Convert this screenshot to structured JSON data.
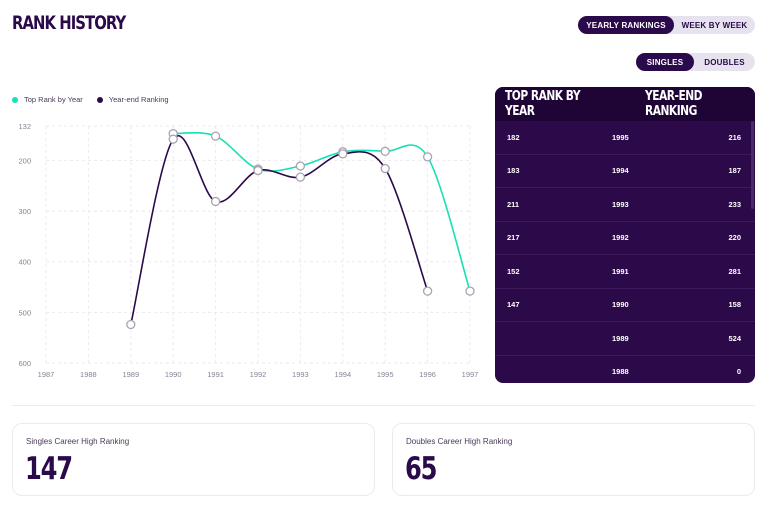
{
  "page": {
    "title": "RANK HISTORY"
  },
  "view_toggle": {
    "options": [
      "YEARLY RANKINGS",
      "WEEK BY WEEK"
    ],
    "active": 0
  },
  "type_toggle": {
    "options": [
      "SINGLES",
      "DOUBLES"
    ],
    "active": 0
  },
  "legend": [
    {
      "label": "Top Rank by Year",
      "color": "#16e0b4"
    },
    {
      "label": "Year-end Ranking",
      "color": "#2a0a4a"
    }
  ],
  "chart_data": {
    "type": "line",
    "x": [
      1987,
      1988,
      1989,
      1990,
      1991,
      1992,
      1993,
      1994,
      1995,
      1996,
      1997
    ],
    "x_tick_labels": [
      "1987",
      "1988",
      "1989",
      "1990",
      "1991",
      "1992",
      "1993",
      "1994",
      "1995",
      "1996",
      "1997"
    ],
    "y_tick_labels": [
      "132",
      "200",
      "300",
      "400",
      "500",
      "600"
    ],
    "y_ticks": [
      132,
      200,
      300,
      400,
      500,
      600
    ],
    "ylim": [
      132,
      600
    ],
    "y_inverted": true,
    "grid": true,
    "legend_position": "top-left",
    "series": [
      {
        "name": "Top Rank by Year",
        "color": "#16e0b4",
        "points": [
          [
            1990,
            147
          ],
          [
            1991,
            152
          ],
          [
            1992,
            217
          ],
          [
            1993,
            211
          ],
          [
            1994,
            183
          ],
          [
            1995,
            182
          ],
          [
            1996,
            193
          ],
          [
            1997,
            458
          ]
        ]
      },
      {
        "name": "Year-end Ranking",
        "color": "#2a0a4a",
        "points": [
          [
            1989,
            524
          ],
          [
            1990,
            158
          ],
          [
            1991,
            281
          ],
          [
            1992,
            220
          ],
          [
            1993,
            233
          ],
          [
            1994,
            187
          ],
          [
            1995,
            216
          ],
          [
            1996,
            458
          ]
        ]
      }
    ]
  },
  "rank_table": {
    "header_left": "TOP RANK BY YEAR",
    "header_right": "YEAR-END RANKING",
    "rows": [
      {
        "top": "182",
        "year": "1995",
        "end": "216"
      },
      {
        "top": "183",
        "year": "1994",
        "end": "187"
      },
      {
        "top": "211",
        "year": "1993",
        "end": "233"
      },
      {
        "top": "217",
        "year": "1992",
        "end": "220"
      },
      {
        "top": "152",
        "year": "1991",
        "end": "281"
      },
      {
        "top": "147",
        "year": "1990",
        "end": "158"
      },
      {
        "top": "",
        "year": "1989",
        "end": "524"
      },
      {
        "top": "",
        "year": "1988",
        "end": "0"
      }
    ]
  },
  "stats": {
    "singles": {
      "label": "Singles Career High Ranking",
      "value": "147"
    },
    "doubles": {
      "label": "Doubles Career High Ranking",
      "value": "65"
    }
  }
}
